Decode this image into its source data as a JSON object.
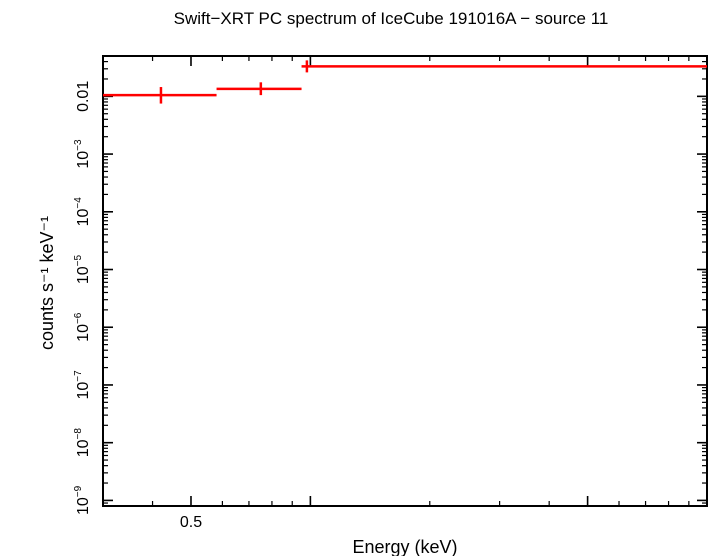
{
  "chart_data": {
    "type": "scatter",
    "title": "Swift−XRT PC spectrum of IceCube 191016A − source 11",
    "xlabel": "Energy (keV)",
    "ylabel": "counts s⁻¹ keV⁻¹",
    "x_scale": "log",
    "y_scale": "log",
    "xlim": [
      0.3,
      10
    ],
    "ylim": [
      8e-10,
      0.05
    ],
    "x_ticks": [
      {
        "value": 0.5,
        "label": "0.5"
      }
    ],
    "y_ticks": [
      {
        "value": 0.01,
        "label": "0.01",
        "exp": ""
      },
      {
        "value": 0.001,
        "label": "10",
        "exp": "−3"
      },
      {
        "value": 0.0001,
        "label": "10",
        "exp": "−4"
      },
      {
        "value": 1e-05,
        "label": "10",
        "exp": "−5"
      },
      {
        "value": 1e-06,
        "label": "10",
        "exp": "−6"
      },
      {
        "value": 1e-07,
        "label": "10",
        "exp": "−7"
      },
      {
        "value": 1e-08,
        "label": "10",
        "exp": "−8"
      },
      {
        "value": 1e-09,
        "label": "10",
        "exp": "−9"
      }
    ],
    "series": [
      {
        "color": "#ff0000",
        "points": [
          {
            "x": 0.42,
            "xlo": 0.3,
            "xhi": 0.58,
            "y": 0.0105,
            "ylo": 0.0075,
            "yhi": 0.0145
          },
          {
            "x": 0.75,
            "xlo": 0.58,
            "xhi": 0.95,
            "y": 0.0135,
            "ylo": 0.0105,
            "yhi": 0.0175
          },
          {
            "x": 0.98,
            "xlo": 0.95,
            "xhi": 10,
            "y": 0.033,
            "ylo": 0.026,
            "yhi": 0.042
          }
        ]
      }
    ],
    "grid": false,
    "legend": "none"
  }
}
